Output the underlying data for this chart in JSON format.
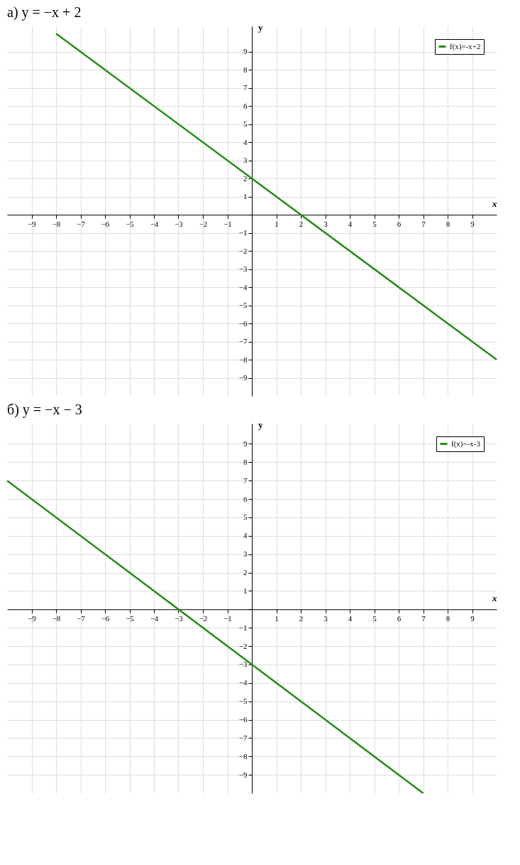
{
  "chart_data": [
    {
      "type": "line",
      "title": "а) y = −x + 2",
      "xlabel": "x",
      "ylabel": "y",
      "x": [
        -8,
        10
      ],
      "series": [
        {
          "name": "f(x)=-x+2",
          "color": "#2a8a1e",
          "values": [
            10,
            -8
          ]
        }
      ],
      "xlim": [
        -10,
        10
      ],
      "ylim": [
        -10,
        10.4
      ],
      "xticks": [
        -9,
        -8,
        -7,
        -6,
        -5,
        -4,
        -3,
        -2,
        -1,
        {
          "value": 0,
          "label": null
        },
        1,
        2,
        3,
        4,
        5,
        6,
        7,
        8,
        9
      ],
      "yticks": [
        -9,
        -8,
        -7,
        -6,
        -5,
        -4,
        -3,
        -2,
        -1,
        {
          "value": 0,
          "label": null
        },
        1,
        2,
        3,
        4,
        5,
        6,
        7,
        8,
        9
      ],
      "grid": true,
      "legend": "top right",
      "marker": "none",
      "line_style": "solid"
    },
    {
      "type": "line",
      "title": "б) y = −x − 3",
      "xlabel": "x",
      "ylabel": "y",
      "x": [
        -10,
        7
      ],
      "series": [
        {
          "name": "f(x)=-x-3",
          "color": "#2a8a1e",
          "values": [
            7,
            -10
          ]
        }
      ],
      "xlim": [
        -10,
        10
      ],
      "ylim": [
        -10,
        10.1
      ],
      "xticks": [
        -9,
        -8,
        -7,
        -6,
        -5,
        -4,
        -3,
        -2,
        -1,
        {
          "value": 0,
          "label": null
        },
        1,
        2,
        3,
        4,
        5,
        6,
        7,
        8,
        9
      ],
      "yticks": [
        -9,
        -8,
        -7,
        -6,
        -5,
        -4,
        -3,
        -2,
        -1,
        {
          "value": 0,
          "label": null
        },
        1,
        2,
        3,
        4,
        5,
        6,
        7,
        8,
        9
      ],
      "grid": true,
      "legend": "top right",
      "marker": "none",
      "line_style": "solid"
    }
  ]
}
